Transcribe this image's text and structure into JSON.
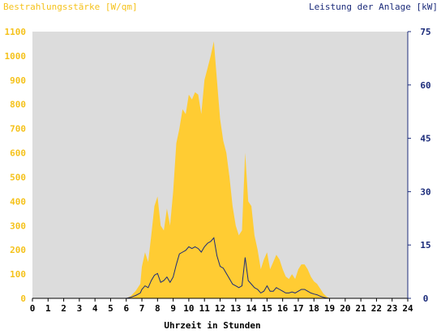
{
  "colors": {
    "plot_background": "#dcdcdc",
    "irradiance_fill": "#ffcc33",
    "irradiance_text": "#f5c21b",
    "power_line": "#1b2b7a",
    "right_axis": "#1b2b7a",
    "left_axis": "#f5c21b"
  },
  "chart_data": {
    "type": "area",
    "left_axis_title": "Bestrahlungsstärke [W/qm]",
    "right_axis_title": "Leistung der Anlage [kW]",
    "xlabel": "Uhrzeit in Stunden",
    "xlim": [
      0,
      24
    ],
    "ylim_left": [
      0,
      1100
    ],
    "ylim_right": [
      0,
      75
    ],
    "x_ticks": [
      "0",
      "1",
      "2",
      "3",
      "4",
      "5",
      "6",
      "7",
      "8",
      "9",
      "10",
      "11",
      "12",
      "13",
      "14",
      "15",
      "16",
      "17",
      "18",
      "19",
      "20",
      "21",
      "22",
      "23",
      "24"
    ],
    "y_left_ticks": [
      "0",
      "100",
      "200",
      "300",
      "400",
      "500",
      "600",
      "700",
      "800",
      "900",
      "1000",
      "1100"
    ],
    "y_right_ticks": [
      "0",
      "15",
      "30",
      "45",
      "60",
      "75"
    ],
    "grid": false,
    "series": [
      {
        "axis": "left",
        "kind": "area",
        "x": [
          0,
          6,
          6.3,
          6.6,
          6.9,
          7.0,
          7.2,
          7.4,
          7.6,
          7.8,
          8.0,
          8.2,
          8.4,
          8.6,
          8.8,
          9.0,
          9.2,
          9.4,
          9.6,
          9.8,
          10.0,
          10.2,
          10.4,
          10.6,
          10.8,
          11.0,
          11.2,
          11.4,
          11.6,
          11.8,
          12.0,
          12.2,
          12.4,
          12.6,
          12.8,
          13.0,
          13.2,
          13.4,
          13.6,
          13.8,
          14.0,
          14.2,
          14.4,
          14.6,
          14.8,
          15.0,
          15.2,
          15.4,
          15.6,
          15.8,
          16.0,
          16.2,
          16.4,
          16.6,
          16.8,
          17.0,
          17.2,
          17.4,
          17.6,
          17.8,
          18.0,
          18.2,
          18.4,
          18.6,
          18.8,
          19.0,
          24
        ],
        "values": [
          0,
          0,
          10,
          30,
          60,
          130,
          190,
          150,
          260,
          380,
          420,
          300,
          280,
          370,
          300,
          440,
          640,
          700,
          780,
          760,
          840,
          820,
          850,
          840,
          760,
          900,
          950,
          1000,
          1060,
          900,
          740,
          650,
          600,
          500,
          380,
          300,
          260,
          280,
          600,
          400,
          380,
          260,
          200,
          120,
          160,
          190,
          120,
          150,
          180,
          160,
          120,
          90,
          80,
          100,
          80,
          120,
          140,
          140,
          120,
          90,
          70,
          60,
          40,
          20,
          8,
          0,
          0
        ]
      },
      {
        "axis": "right",
        "kind": "line",
        "x": [
          0,
          6,
          6.3,
          6.6,
          6.9,
          7.0,
          7.2,
          7.4,
          7.6,
          7.8,
          8.0,
          8.2,
          8.4,
          8.6,
          8.8,
          9.0,
          9.2,
          9.4,
          9.6,
          9.8,
          10.0,
          10.2,
          10.4,
          10.6,
          10.8,
          11.0,
          11.2,
          11.4,
          11.6,
          11.8,
          12.0,
          12.2,
          12.4,
          12.6,
          12.8,
          13.0,
          13.2,
          13.4,
          13.6,
          13.8,
          14.0,
          14.2,
          14.4,
          14.6,
          14.8,
          15.0,
          15.2,
          15.4,
          15.6,
          15.8,
          16.0,
          16.2,
          16.4,
          16.6,
          16.8,
          17.0,
          17.2,
          17.4,
          17.6,
          17.8,
          18.0,
          18.2,
          18.4,
          18.6,
          18.8,
          19.0,
          24
        ],
        "values": [
          0,
          0,
          0.3,
          0.8,
          1.5,
          2.5,
          3.5,
          3.0,
          5.0,
          6.5,
          7.0,
          4.5,
          5.0,
          6.0,
          4.5,
          6.0,
          9.5,
          12.5,
          13.0,
          13.5,
          14.5,
          14.0,
          14.5,
          14.0,
          13.0,
          14.5,
          15.5,
          16.0,
          17.0,
          12.0,
          9.0,
          8.5,
          7.0,
          5.5,
          4.0,
          3.5,
          3.0,
          3.5,
          11.5,
          5.0,
          4.0,
          3.0,
          2.5,
          1.5,
          2.0,
          3.5,
          2.0,
          2.0,
          3.0,
          2.5,
          2.0,
          1.5,
          1.5,
          1.8,
          1.5,
          2.0,
          2.5,
          2.5,
          2.0,
          1.5,
          1.2,
          1.0,
          0.6,
          0.3,
          0.1,
          0,
          0
        ]
      }
    ]
  }
}
